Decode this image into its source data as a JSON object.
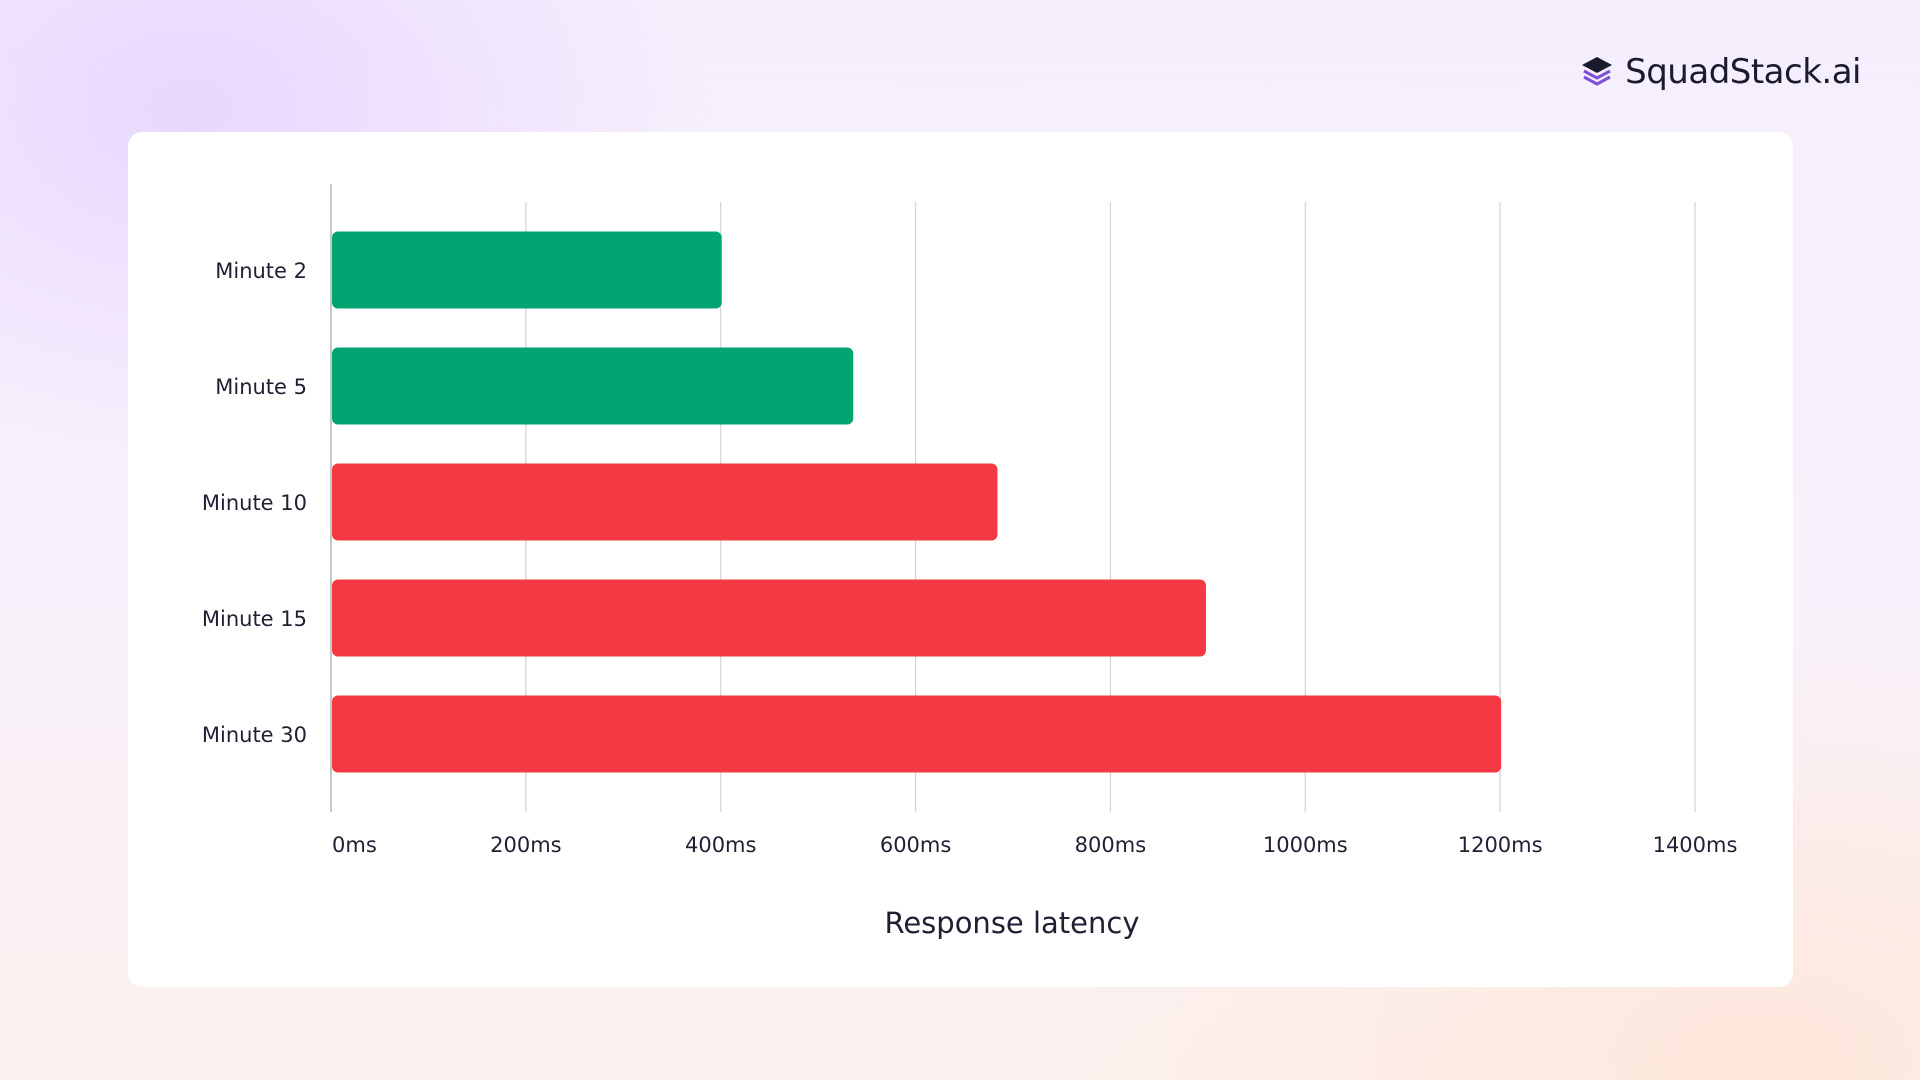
{
  "brand": {
    "name": "SquadStack.ai",
    "icon": "layered-stack-icon",
    "icon_color": "#7b4fd6",
    "icon_dark": "#1a1b2e"
  },
  "chart_data": {
    "type": "bar",
    "orientation": "horizontal",
    "categories": [
      "Minute 2",
      "Minute 5",
      "Minute 10",
      "Minute 15",
      "Minute 30"
    ],
    "values": [
      400,
      535,
      683,
      897,
      1200
    ],
    "colors": [
      "#02a472",
      "#02a472",
      "#f53942",
      "#f53942",
      "#f53942"
    ],
    "x_ticks": [
      0,
      200,
      400,
      600,
      800,
      1000,
      1200,
      1400
    ],
    "x_tick_labels": [
      "0ms",
      "200ms",
      "400ms",
      "600ms",
      "800ms",
      "1000ms",
      "1200ms",
      "1400ms"
    ],
    "xlim": [
      0,
      1400
    ],
    "xlabel": "Response latency",
    "ylabel": "",
    "title": "",
    "grid": true,
    "legend": "none"
  }
}
